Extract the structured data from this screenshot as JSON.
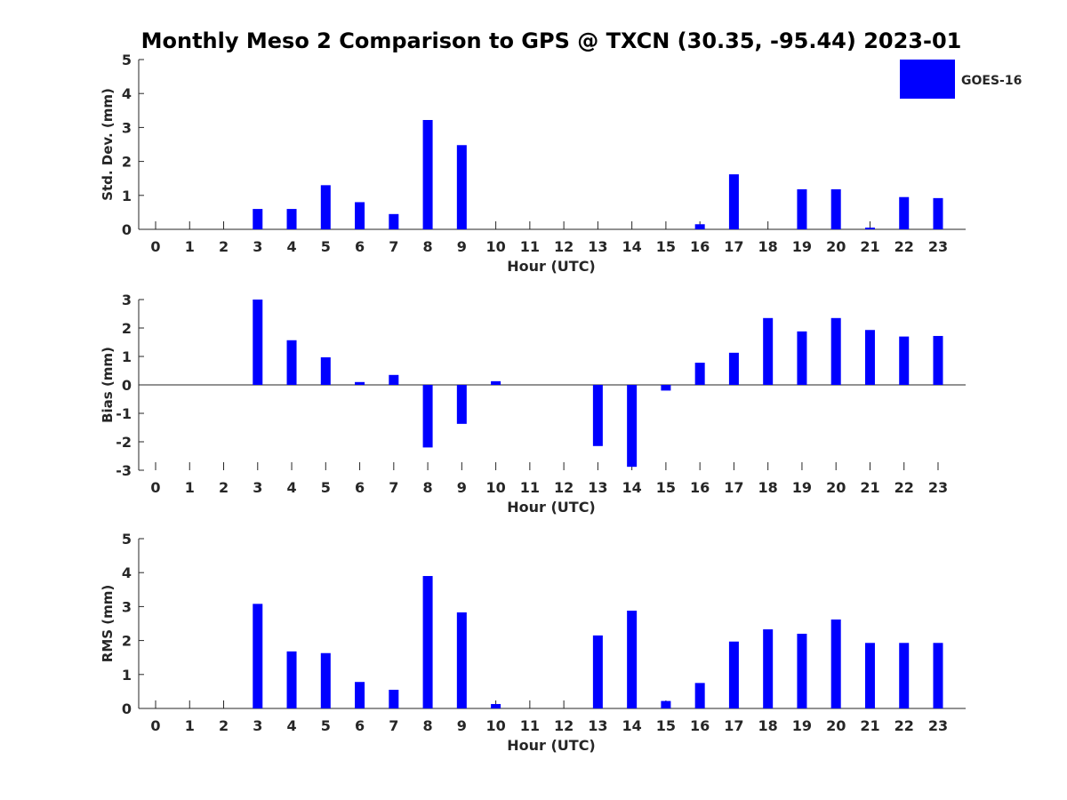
{
  "title": "Monthly Meso 2 Comparison to GPS @ TXCN (30.35, -95.44) 2023-01",
  "legend": {
    "label": "GOES-16",
    "color": "#0000ff",
    "placement": "top-right"
  },
  "chart_data": [
    {
      "type": "bar",
      "ylabel": "Std. Dev. (mm)",
      "xlabel": "Hour (UTC)",
      "ylim": [
        0,
        5
      ],
      "yticks": [
        "0",
        "1",
        "2",
        "3",
        "4",
        "5"
      ],
      "categories": [
        "0",
        "1",
        "2",
        "3",
        "4",
        "5",
        "6",
        "7",
        "8",
        "9",
        "10",
        "11",
        "12",
        "13",
        "14",
        "15",
        "16",
        "17",
        "18",
        "19",
        "20",
        "21",
        "22",
        "23"
      ],
      "series": [
        {
          "name": "GOES-16",
          "values": [
            null,
            null,
            null,
            0.6,
            0.6,
            1.3,
            0.8,
            0.45,
            3.22,
            2.48,
            null,
            null,
            null,
            null,
            null,
            null,
            0.15,
            1.62,
            null,
            1.18,
            1.18,
            0.05,
            0.95,
            0.92
          ]
        }
      ]
    },
    {
      "type": "bar",
      "ylabel": "Bias (mm)",
      "xlabel": "Hour (UTC)",
      "ylim": [
        -3,
        3
      ],
      "yticks": [
        "-3",
        "-2",
        "-1",
        "0",
        "1",
        "2",
        "3"
      ],
      "categories": [
        "0",
        "1",
        "2",
        "3",
        "4",
        "5",
        "6",
        "7",
        "8",
        "9",
        "10",
        "11",
        "12",
        "13",
        "14",
        "15",
        "16",
        "17",
        "18",
        "19",
        "20",
        "21",
        "22",
        "23"
      ],
      "series": [
        {
          "name": "GOES-16",
          "values": [
            null,
            null,
            null,
            3.0,
            1.57,
            0.97,
            0.1,
            0.35,
            -2.2,
            -1.37,
            0.13,
            null,
            null,
            -2.15,
            -2.88,
            -0.2,
            0.78,
            1.13,
            2.35,
            1.88,
            2.35,
            1.93,
            1.7,
            1.72
          ]
        }
      ]
    },
    {
      "type": "bar",
      "ylabel": "RMS (mm)",
      "xlabel": "Hour (UTC)",
      "ylim": [
        0,
        5
      ],
      "yticks": [
        "0",
        "1",
        "2",
        "3",
        "4",
        "5"
      ],
      "categories": [
        "0",
        "1",
        "2",
        "3",
        "4",
        "5",
        "6",
        "7",
        "8",
        "9",
        "10",
        "11",
        "12",
        "13",
        "14",
        "15",
        "16",
        "17",
        "18",
        "19",
        "20",
        "21",
        "22",
        "23"
      ],
      "series": [
        {
          "name": "GOES-16",
          "values": [
            null,
            null,
            null,
            3.08,
            1.68,
            1.63,
            0.78,
            0.55,
            3.9,
            2.83,
            0.13,
            null,
            null,
            2.15,
            2.88,
            0.22,
            0.75,
            1.97,
            2.33,
            2.2,
            2.62,
            1.93,
            1.93,
            1.93
          ]
        }
      ]
    }
  ]
}
